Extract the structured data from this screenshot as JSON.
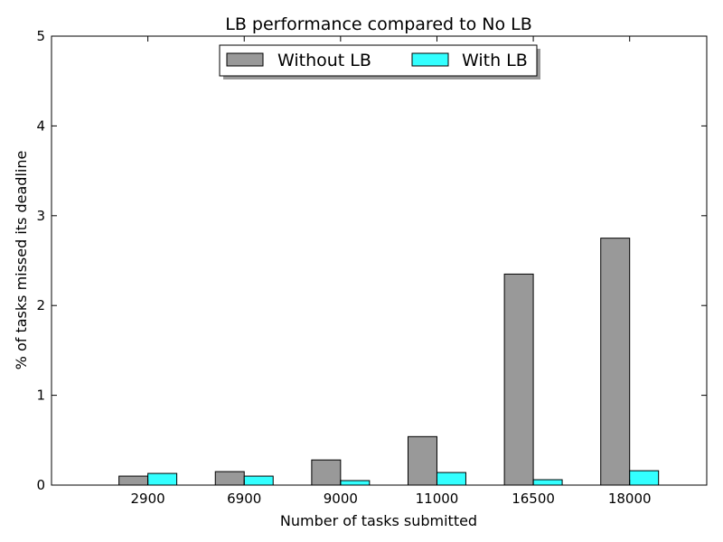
{
  "chart_data": {
    "type": "bar",
    "title": "LB performance compared to No LB",
    "xlabel": "Number of tasks submitted",
    "ylabel": "% of tasks missed its deadline",
    "categories": [
      "2900",
      "6900",
      "9000",
      "11000",
      "16500",
      "18000"
    ],
    "series": [
      {
        "name": "Without LB",
        "color": "#999999",
        "values": [
          0.1,
          0.15,
          0.28,
          0.54,
          2.35,
          2.75
        ]
      },
      {
        "name": "With LB",
        "color": "#33ffff",
        "values": [
          0.13,
          0.1,
          0.05,
          0.14,
          0.06,
          0.16
        ]
      }
    ],
    "ylim": [
      0,
      5
    ],
    "yticks": [
      "0",
      "1",
      "2",
      "3",
      "4",
      "5"
    ],
    "grid": false,
    "legend_position": "top-center"
  }
}
